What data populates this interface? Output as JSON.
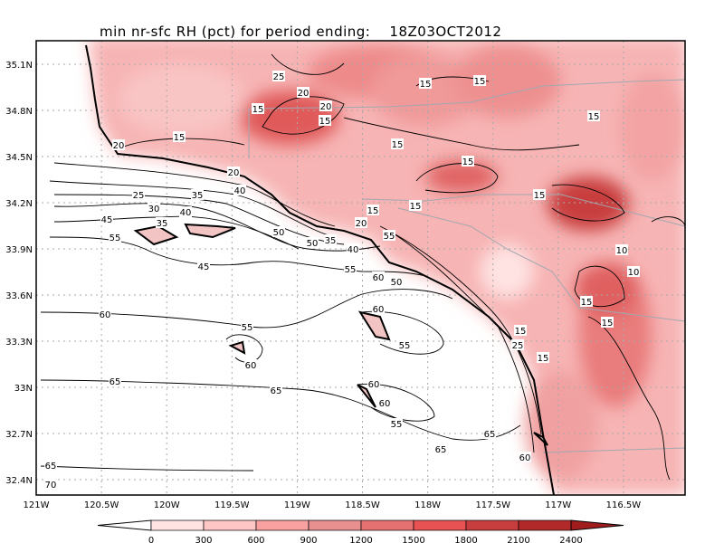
{
  "title": "min nr-sfc RH (pct) for period ending:    18Z03OCT2012",
  "axes": {
    "lon_ticks": [
      "121W",
      "120.5W",
      "120W",
      "119.5W",
      "119W",
      "118.5W",
      "118W",
      "117.5W",
      "117W",
      "116.5W"
    ],
    "lat_ticks": [
      "35.1N",
      "34.8N",
      "34.5N",
      "34.2N",
      "33.9N",
      "33.6N",
      "33.3N",
      "33N",
      "32.7N",
      "32.4N"
    ]
  },
  "colorbar": {
    "labels": [
      "0",
      "300",
      "600",
      "900",
      "1200",
      "1500",
      "1800",
      "2100",
      "2400"
    ],
    "colors": [
      "#ffffff",
      "#ffe3e3",
      "#ffc6c6",
      "#f9a1a1",
      "#e89090",
      "#e67171",
      "#e85252",
      "#c83d3d",
      "#b22929",
      "#a11d1d"
    ]
  },
  "contour_labels": [
    "25",
    "20",
    "15",
    "15",
    "20",
    "15",
    "15",
    "15",
    "15",
    "15",
    "15",
    "15",
    "15",
    "15",
    "20",
    "25",
    "30",
    "35",
    "40",
    "20",
    "35",
    "40",
    "45",
    "50",
    "55",
    "45",
    "50",
    "55",
    "35",
    "40",
    "20",
    "15",
    "15",
    "55",
    "60",
    "50",
    "60",
    "55",
    "60",
    "60",
    "65",
    "65",
    "60",
    "55",
    "65",
    "65",
    "60",
    "55",
    "60",
    "65",
    "70",
    "10",
    "10",
    "15",
    "15",
    "25"
  ]
}
